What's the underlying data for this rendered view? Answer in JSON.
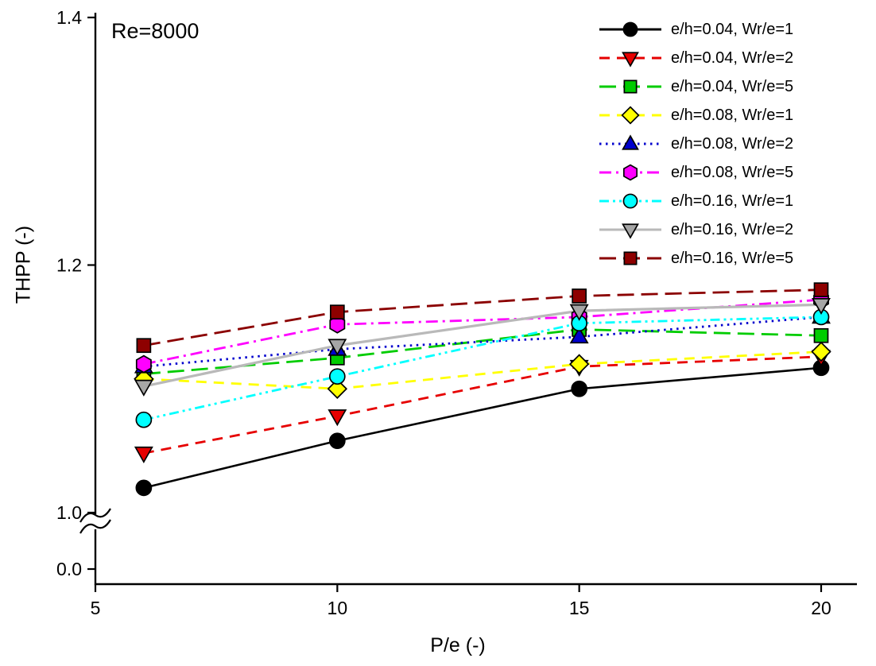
{
  "chart_data": {
    "type": "line",
    "annotation": "Re=8000",
    "xlabel": "P/e (-)",
    "ylabel": "THPP (-)",
    "x_ticks": [
      "5",
      "10",
      "15",
      "20"
    ],
    "x_tick_values": [
      5,
      10,
      15,
      20
    ],
    "y_ticks": [
      {
        "label": "0.0",
        "value": 0.0
      },
      {
        "label": "1.0",
        "value": 1.0
      },
      {
        "label": "1.2",
        "value": 1.2
      },
      {
        "label": "1.4",
        "value": 1.4
      }
    ],
    "axis_break": {
      "axis": "y",
      "between": [
        0.0,
        1.0
      ]
    },
    "xlim": [
      5,
      20.75
    ],
    "ylim_upper": [
      1.0,
      1.4
    ],
    "grid": false,
    "legend_position": "top-right",
    "x": [
      6,
      10,
      15,
      20
    ],
    "series": [
      {
        "name": "e/h=0.04, Wr/e=1",
        "color": "#000000",
        "marker_fill": "#000000",
        "marker": "circle",
        "line": "solid",
        "values": [
          1.02,
          1.058,
          1.1,
          1.117
        ]
      },
      {
        "name": "e/h=0.04, Wr/e=2",
        "color": "#e60000",
        "marker_fill": "#e60000",
        "marker": "triangle-down",
        "line": "dash",
        "values": [
          1.048,
          1.078,
          1.118,
          1.126
        ]
      },
      {
        "name": "e/h=0.04, Wr/e=5",
        "color": "#00cc00",
        "marker_fill": "#00cc00",
        "marker": "square",
        "line": "long-dash",
        "values": [
          1.112,
          1.125,
          1.148,
          1.143
        ]
      },
      {
        "name": "e/h=0.08, Wr/e=1",
        "color": "#ffff00",
        "marker_fill": "#ffff00",
        "marker": "diamond",
        "line": "dash",
        "values": [
          1.108,
          1.1,
          1.12,
          1.13
        ]
      },
      {
        "name": "e/h=0.08, Wr/e=2",
        "color": "#0000cd",
        "marker_fill": "#0000cd",
        "marker": "triangle-up",
        "line": "dot",
        "values": [
          1.118,
          1.132,
          1.142,
          1.158
        ]
      },
      {
        "name": "e/h=0.08, Wr/e=5",
        "color": "#ff00ff",
        "marker_fill": "#ff00ff",
        "marker": "hexagon",
        "line": "dash-dot",
        "values": [
          1.12,
          1.152,
          1.158,
          1.172
        ]
      },
      {
        "name": "e/h=0.16, Wr/e=1",
        "color": "#00ffff",
        "marker_fill": "#00ffff",
        "marker": "circle",
        "line": "dash-dot-dot",
        "values": [
          1.075,
          1.11,
          1.153,
          1.158
        ]
      },
      {
        "name": "e/h=0.16, Wr/e=2",
        "color": "#b9b9b9",
        "marker_fill": "#a6a6a6",
        "marker": "triangle-down",
        "line": "solid",
        "width": 3.2,
        "values": [
          1.102,
          1.135,
          1.163,
          1.168
        ]
      },
      {
        "name": "e/h=0.16, Wr/e=5",
        "color": "#8b0000",
        "marker_fill": "#8e0000",
        "marker": "square",
        "line": "long-dash",
        "values": [
          1.135,
          1.162,
          1.175,
          1.18
        ]
      }
    ]
  }
}
